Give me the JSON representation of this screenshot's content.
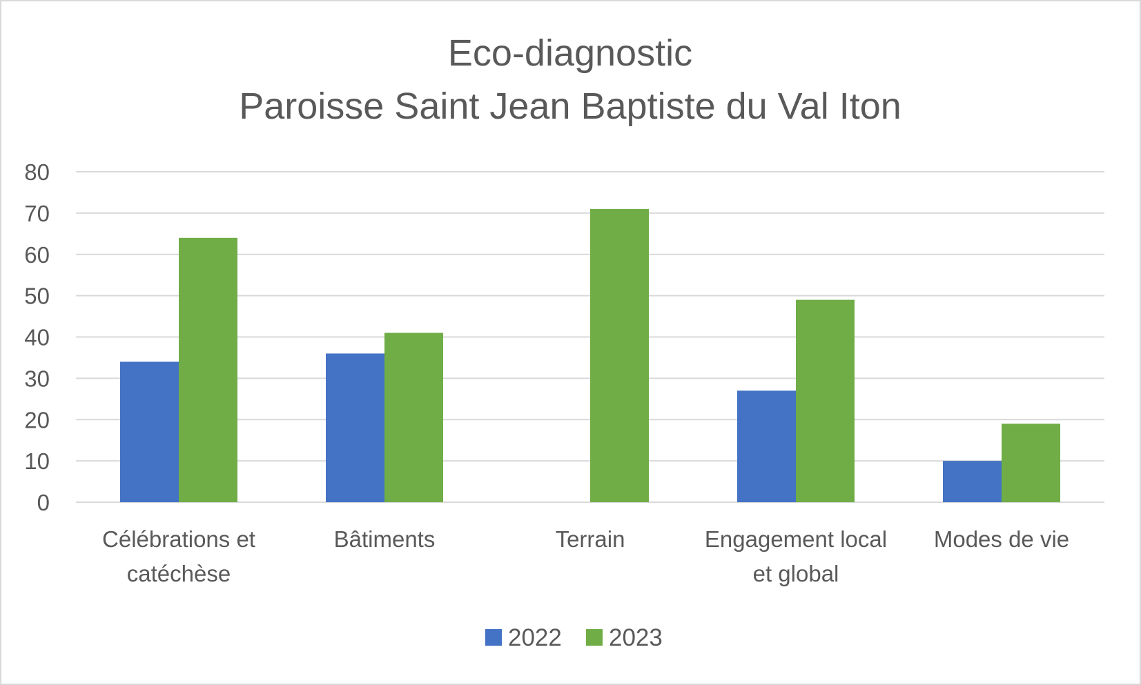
{
  "chart_data": {
    "type": "bar",
    "title": [
      "Eco-diagnostic",
      "Paroisse Saint Jean Baptiste du Val Iton"
    ],
    "categories": [
      [
        "Célébrations et",
        "catéchèse"
      ],
      [
        "Bâtiments"
      ],
      [
        "Terrain"
      ],
      [
        "Engagement local",
        "et global"
      ],
      [
        "Modes de vie"
      ]
    ],
    "series": [
      {
        "name": "2022",
        "color": "#4472c4",
        "values": [
          34,
          36,
          0,
          27,
          10
        ]
      },
      {
        "name": "2023",
        "color": "#70ad47",
        "values": [
          64,
          41,
          71,
          49,
          19
        ]
      }
    ],
    "ylim": [
      0,
      80
    ],
    "yticks": [
      "0",
      "10",
      "20",
      "30",
      "40",
      "50",
      "60",
      "70",
      "80"
    ],
    "grid": true,
    "legend": "bottom",
    "colors": {
      "text": "#595959",
      "grid": "#d9d9d9"
    }
  }
}
